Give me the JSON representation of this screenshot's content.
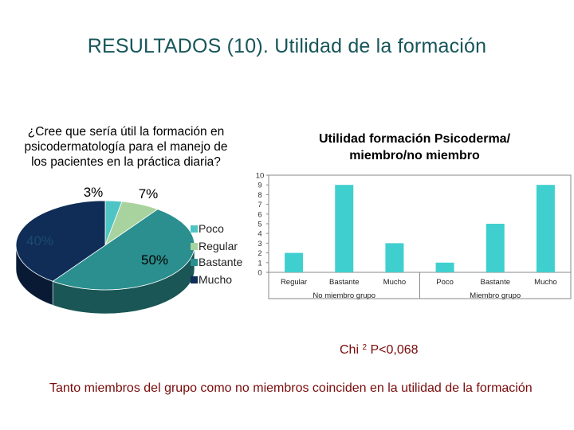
{
  "slide": {
    "title": "RESULTADOS (10). Utilidad de la formación",
    "footnote": "Tanto miembros del grupo como no miembros coinciden en la utilidad de la formación",
    "chi_label": "Chi",
    "chi_exponent": "2",
    "chi_p": "P<0,068"
  },
  "colors": {
    "title": "#17565a",
    "footnote": "#7a0b0b",
    "poco": "#4fc4c4",
    "regular": "#a9d39e",
    "bastante": "#2a8f8e",
    "mucho": "#0f2d57",
    "bar": "#40cfcf"
  },
  "chart_data": [
    {
      "type": "pie",
      "title": "¿Cree que sería útil la formación en psicodermatología para el manejo de los pacientes en la práctica diaria?",
      "categories": [
        "Poco",
        "Regular",
        "Bastante",
        "Mucho"
      ],
      "values": [
        3,
        7,
        50,
        40
      ],
      "value_labels": [
        "3%",
        "7%",
        "50%",
        "40%"
      ],
      "legend_position": "right"
    },
    {
      "type": "bar",
      "title": "Utilidad formación Psicoderma/ miembro/no miembro",
      "categories": [
        "Regular",
        "Bastante",
        "Mucho",
        "Poco",
        "Bastante",
        "Mucho"
      ],
      "groups": [
        {
          "label": "No miembro grupo",
          "span": [
            0,
            2
          ]
        },
        {
          "label": "Miembro grupo",
          "span": [
            3,
            5
          ]
        }
      ],
      "values": [
        2,
        9,
        3,
        1,
        5,
        9
      ],
      "ylim": [
        0,
        10
      ],
      "yticks": [
        "0",
        "1",
        "2",
        "3",
        "4",
        "5",
        "6",
        "7",
        "8",
        "9",
        "10"
      ],
      "grid": false,
      "legend": false
    }
  ]
}
